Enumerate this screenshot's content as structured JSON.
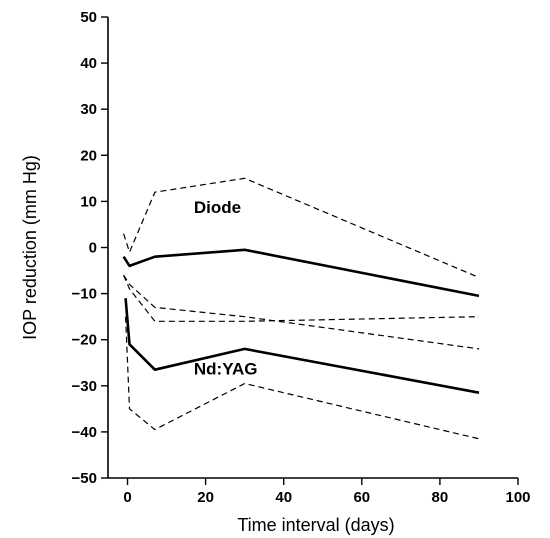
{
  "chart_data": {
    "type": "line",
    "xlabel": "Time interval (days)",
    "ylabel": "IOP reduction (mm Hg)",
    "xlim": [
      -5,
      100
    ],
    "ylim": [
      -50,
      50
    ],
    "x_ticks": [
      0,
      20,
      40,
      60,
      80,
      100
    ],
    "y_ticks": [
      50,
      40,
      30,
      20,
      10,
      0,
      -10,
      -20,
      -30,
      -40,
      -50
    ],
    "grid": false,
    "legend": "none",
    "series": [
      {
        "name": "Diode",
        "style": "solid",
        "points": [
          [
            -1,
            -2
          ],
          [
            0.5,
            -4
          ],
          [
            7,
            -2
          ],
          [
            30,
            -0.5
          ],
          [
            90,
            -10.5
          ]
        ]
      },
      {
        "style": "dashed",
        "points": [
          [
            -1,
            3
          ],
          [
            0.5,
            -1
          ],
          [
            7,
            12
          ],
          [
            30,
            15
          ],
          [
            90,
            -6.5
          ]
        ]
      },
      {
        "style": "dashed",
        "points": [
          [
            -1,
            -6
          ],
          [
            0.5,
            -9
          ],
          [
            7,
            -16
          ],
          [
            30,
            -16
          ],
          [
            90,
            -15
          ]
        ]
      },
      {
        "name": "Nd:YAG",
        "style": "solid",
        "points": [
          [
            -0.5,
            -11
          ],
          [
            0.5,
            -21
          ],
          [
            7,
            -26.5
          ],
          [
            30,
            -22
          ],
          [
            90,
            -31.5
          ]
        ]
      },
      {
        "style": "dashed",
        "points": [
          [
            -1,
            -6
          ],
          [
            0.5,
            -8
          ],
          [
            7,
            -13
          ],
          [
            30,
            -15
          ],
          [
            90,
            -22
          ]
        ]
      },
      {
        "style": "dashed",
        "points": [
          [
            -0.5,
            -15
          ],
          [
            0.5,
            -35
          ],
          [
            7,
            -39.5
          ],
          [
            30,
            -29.5
          ],
          [
            90,
            -41.5
          ]
        ]
      }
    ]
  }
}
